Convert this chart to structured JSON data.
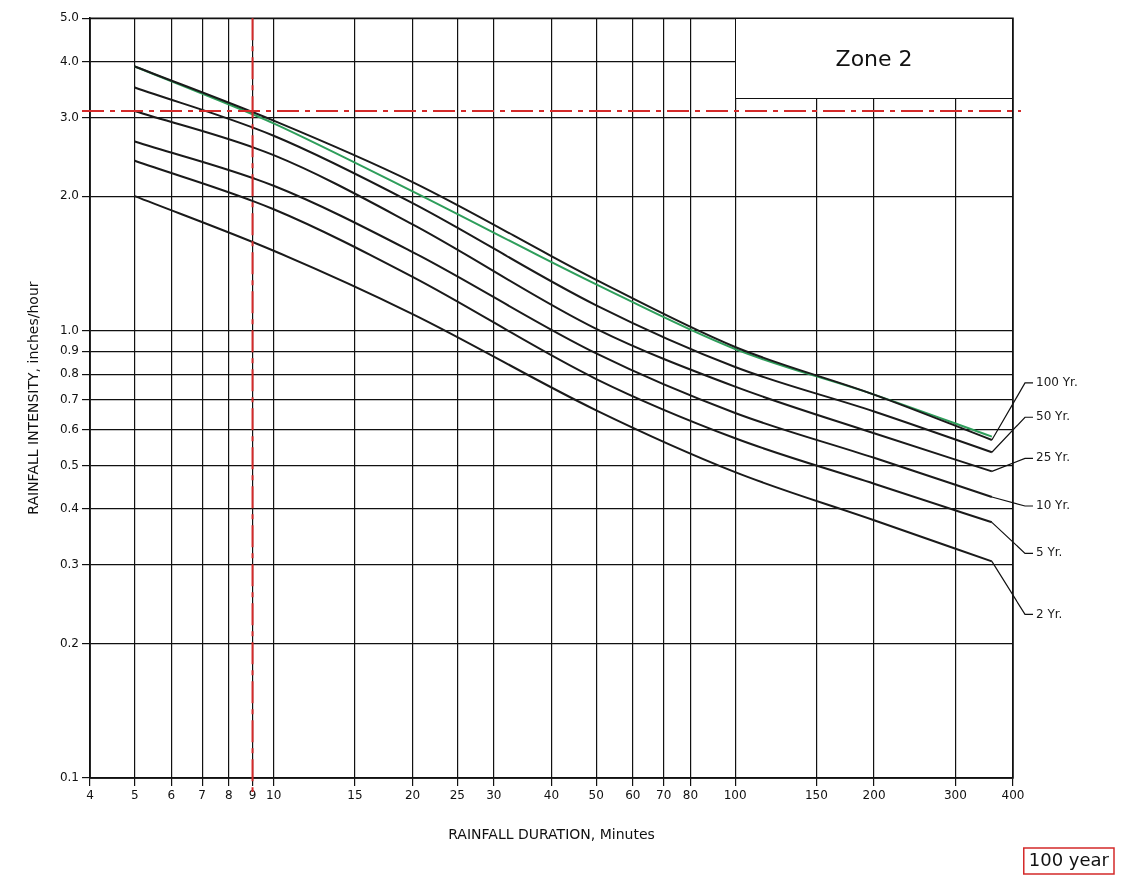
{
  "chart_data": {
    "type": "line",
    "xlabel": "RAINFALL DURATION, Minutes",
    "ylabel": "RAINFALL INTENSITY, inches/hour",
    "log": "xy",
    "grid": true,
    "legend": "right",
    "line_style": "solid",
    "xlim": [
      4,
      400
    ],
    "ylim": [
      0.1,
      5
    ],
    "xticks": [
      4,
      5,
      6,
      7,
      8,
      9,
      10,
      15,
      20,
      25,
      30,
      40,
      50,
      60,
      70,
      80,
      100,
      150,
      200,
      300,
      400
    ],
    "yticks": [
      0.1,
      0.2,
      0.3,
      0.4,
      0.5,
      0.6,
      0.7,
      0.8,
      0.9,
      {
        "value": 1,
        "label": "1.0"
      },
      {
        "value": 2,
        "label": "2.0"
      },
      {
        "value": 3,
        "label": "3.0"
      },
      {
        "value": 4,
        "label": "4.0"
      },
      {
        "value": 5,
        "label": "5.0"
      }
    ],
    "series": [
      {
        "name": "100 Yr.",
        "color": "#1a1a1a",
        "x": [
          5,
          10,
          20,
          50,
          100,
          200,
          360
        ],
        "values": [
          3.9,
          2.95,
          2.15,
          1.3,
          0.92,
          0.72,
          0.57
        ]
      },
      {
        "name": "50 Yr.",
        "color": "#1a1a1a",
        "x": [
          5,
          10,
          20,
          50,
          100,
          200,
          360
        ],
        "values": [
          3.5,
          2.73,
          1.93,
          1.14,
          0.83,
          0.66,
          0.535
        ]
      },
      {
        "name": "25 Yr.",
        "color": "#1a1a1a",
        "x": [
          5,
          10,
          20,
          50,
          100,
          200,
          360
        ],
        "values": [
          3.1,
          2.47,
          1.73,
          1.01,
          0.75,
          0.59,
          0.485
        ]
      },
      {
        "name": "10 Yr.",
        "color": "#1a1a1a",
        "x": [
          5,
          10,
          20,
          50,
          100,
          200,
          360
        ],
        "values": [
          2.65,
          2.11,
          1.5,
          0.89,
          0.655,
          0.52,
          0.425
        ]
      },
      {
        "name": "5 Yr.",
        "color": "#1a1a1a",
        "x": [
          5,
          10,
          20,
          50,
          100,
          200,
          360
        ],
        "values": [
          2.4,
          1.87,
          1.32,
          0.78,
          0.575,
          0.455,
          0.373
        ]
      },
      {
        "name": "2 Yr.",
        "color": "#1a1a1a",
        "x": [
          5,
          10,
          20,
          50,
          100,
          200,
          360
        ],
        "values": [
          2.0,
          1.51,
          1.09,
          0.664,
          0.483,
          0.377,
          0.305
        ]
      },
      {
        "color": "#2e9e5b",
        "x": [
          5,
          9,
          10,
          20,
          50,
          100,
          200,
          360
        ],
        "values": [
          3.9,
          3.05,
          2.91,
          2.05,
          1.27,
          0.91,
          0.72,
          0.58
        ]
      }
    ],
    "ref_lines": [
      {
        "axis": "x",
        "value": 9,
        "color": "#d42a2a",
        "line_style": "dashed"
      },
      {
        "axis": "y",
        "value": 3.1,
        "color": "#d42a2a",
        "line_style": "dashed"
      }
    ],
    "annotations": [
      "Zone 2",
      "100 year"
    ]
  }
}
